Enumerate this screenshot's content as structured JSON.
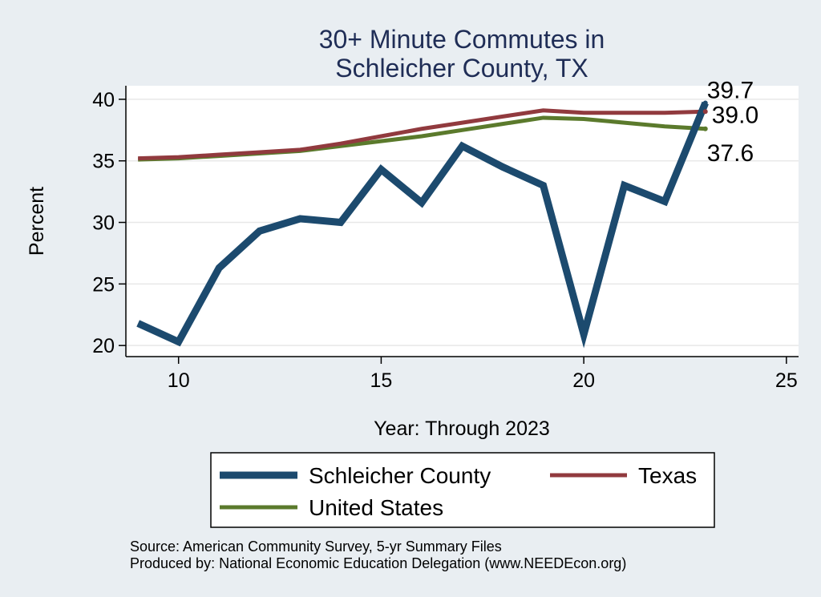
{
  "chart_data": {
    "type": "line",
    "title": [
      "30+ Minute Commutes in",
      "Schleicher County, TX"
    ],
    "xlabel": "Year: Through 2023",
    "ylabel": "Percent",
    "xlim": [
      8.7,
      25.3
    ],
    "ylim": [
      19.1,
      41.1
    ],
    "xticks": [
      10,
      15,
      20,
      25
    ],
    "yticks": [
      20,
      25,
      30,
      35,
      40
    ],
    "grid": true,
    "x": [
      9,
      10,
      11,
      12,
      13,
      14,
      15,
      16,
      17,
      18,
      19,
      20,
      21,
      22,
      23
    ],
    "series": [
      {
        "name": "Schleicher County",
        "color": "#1c4a6e",
        "values": [
          21.8,
          20.3,
          26.3,
          29.3,
          30.3,
          30.0,
          34.3,
          31.6,
          36.2,
          34.5,
          33.0,
          20.9,
          33.0,
          31.7,
          39.7
        ],
        "end_label": "39.7"
      },
      {
        "name": "Texas",
        "color": "#913a3e",
        "values": [
          35.2,
          35.3,
          35.5,
          35.7,
          35.9,
          36.4,
          37.0,
          37.6,
          38.1,
          38.6,
          39.1,
          38.9,
          38.9,
          38.9,
          39.0
        ],
        "end_label": "39.0"
      },
      {
        "name": "United States",
        "color": "#5b7a2c",
        "values": [
          35.1,
          35.2,
          35.4,
          35.6,
          35.8,
          36.2,
          36.6,
          37.0,
          37.5,
          38.0,
          38.5,
          38.4,
          38.1,
          37.8,
          37.6
        ],
        "end_label": "37.6"
      }
    ],
    "legend_position": "bottom",
    "notes": [
      "Source: American Community Survey, 5-yr Summary Files",
      "Produced by: National Economic Education Delegation (www.NEEDEcon.org)"
    ]
  }
}
